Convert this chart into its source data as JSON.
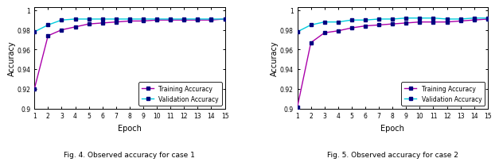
{
  "fig4": {
    "epochs": [
      1,
      2,
      3,
      4,
      5,
      6,
      7,
      8,
      9,
      10,
      11,
      12,
      13,
      14,
      15
    ],
    "training": [
      0.92,
      0.974,
      0.98,
      0.983,
      0.986,
      0.987,
      0.988,
      0.989,
      0.989,
      0.99,
      0.99,
      0.99,
      0.99,
      0.99,
      0.991
    ],
    "validation": [
      0.978,
      0.985,
      0.99,
      0.991,
      0.991,
      0.991,
      0.991,
      0.991,
      0.991,
      0.991,
      0.991,
      0.991,
      0.991,
      0.991,
      0.991
    ],
    "ylim": [
      0.9,
      1.003
    ],
    "yticks": [
      0.9,
      0.92,
      0.94,
      0.96,
      0.98,
      1.0
    ],
    "ytick_labels": [
      "0.9",
      "0.92",
      "0.94",
      "0.96",
      "0.98",
      "1"
    ],
    "xlabel": "Epoch",
    "ylabel": "Accuracy",
    "title": "Fig. 4. Observed accuracy for case 1"
  },
  "fig5": {
    "epochs": [
      1,
      2,
      3,
      4,
      5,
      6,
      7,
      8,
      9,
      10,
      11,
      12,
      13,
      14,
      15
    ],
    "training": [
      0.901,
      0.967,
      0.977,
      0.979,
      0.982,
      0.984,
      0.985,
      0.986,
      0.987,
      0.988,
      0.988,
      0.988,
      0.989,
      0.99,
      0.991
    ],
    "validation": [
      0.978,
      0.985,
      0.988,
      0.988,
      0.99,
      0.99,
      0.991,
      0.991,
      0.992,
      0.992,
      0.992,
      0.991,
      0.991,
      0.992,
      0.992
    ],
    "ylim": [
      0.9,
      1.003
    ],
    "yticks": [
      0.9,
      0.92,
      0.94,
      0.96,
      0.98,
      1.0
    ],
    "ytick_labels": [
      "0.9",
      "0.92",
      "0.94",
      "0.96",
      "0.98",
      "1"
    ],
    "xlabel": "Epoch",
    "ylabel": "Accuracy",
    "title": "Fig. 5. Observed accuracy for case 2"
  },
  "bg_color": "#ffffff",
  "ax_bg_color": "#ffffff",
  "train_color": "#AA00AA",
  "train_marker_color": "#000080",
  "val_color": "#00CCDD",
  "val_marker_color": "#000080",
  "marker": "s",
  "markersize": 3.5,
  "linewidth": 1.0,
  "legend_train": "Training Accuracy",
  "legend_val": "Validation Accuracy"
}
